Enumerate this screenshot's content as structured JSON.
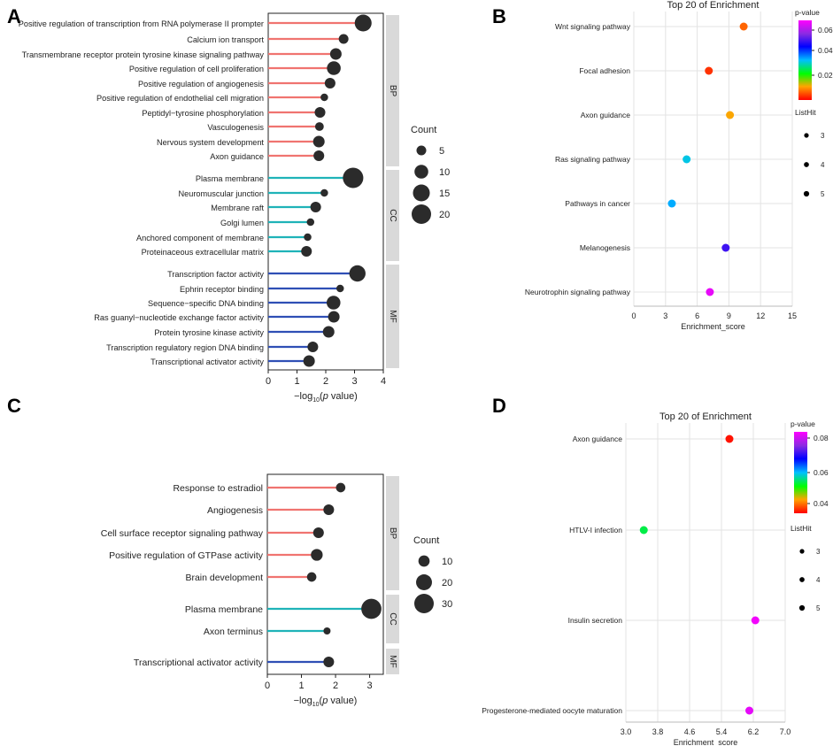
{
  "chart_data": [
    {
      "panel": "A",
      "type": "lollipop",
      "xlabel_prefix": "−log",
      "xlabel_sub": "10",
      "xlabel_open": "(",
      "xlabel_italic": "p",
      "xlabel_suffix": " value)",
      "xlim": [
        0,
        4
      ],
      "xticks": [
        "0",
        "1",
        "2",
        "3",
        "4"
      ],
      "size_legend": {
        "title": "Count",
        "labels": [
          "5",
          "10",
          "15",
          "20"
        ],
        "values": [
          5,
          10,
          15,
          20
        ]
      },
      "groups": [
        {
          "label": "BP",
          "color": "#f07470",
          "terms": [
            {
              "label": "Positive regulation of transcription from RNA polymerase II prompter",
              "value": 3.3,
              "count": 15
            },
            {
              "label": "Calcium ion transport",
              "value": 2.62,
              "count": 5
            },
            {
              "label": "Transmembrane receptor protein tyrosine kinase signaling pathway",
              "value": 2.35,
              "count": 7
            },
            {
              "label": "Positive regulation of cell proliferation",
              "value": 2.28,
              "count": 10
            },
            {
              "label": "Positive regulation of angiogenesis",
              "value": 2.15,
              "count": 6
            },
            {
              "label": "Positive regulation of endothelial cell migration",
              "value": 1.95,
              "count": 3
            },
            {
              "label": "Peptidyl−tyrosine phosphorylation",
              "value": 1.8,
              "count": 6
            },
            {
              "label": "Vasculogenesis",
              "value": 1.78,
              "count": 4
            },
            {
              "label": "Nervous system development",
              "value": 1.76,
              "count": 7
            },
            {
              "label": "Axon guidance",
              "value": 1.76,
              "count": 6
            }
          ]
        },
        {
          "label": "CC",
          "color": "#1fb3b8",
          "terms": [
            {
              "label": "Plasma membrane",
              "value": 2.95,
              "count": 22
            },
            {
              "label": "Neuromuscular junction",
              "value": 1.95,
              "count": 3
            },
            {
              "label": "Membrane raft",
              "value": 1.65,
              "count": 6
            },
            {
              "label": "Golgi lumen",
              "value": 1.47,
              "count": 3
            },
            {
              "label": "Anchored component of membrane",
              "value": 1.37,
              "count": 3
            },
            {
              "label": "Proteinaceous extracellular matrix",
              "value": 1.33,
              "count": 6
            }
          ]
        },
        {
          "label": "MF",
          "color": "#2f4fb5",
          "terms": [
            {
              "label": "Transcription factor activity",
              "value": 3.1,
              "count": 14
            },
            {
              "label": "Ephrin receptor binding",
              "value": 2.5,
              "count": 3
            },
            {
              "label": "Sequence−specific DNA binding",
              "value": 2.27,
              "count": 10
            },
            {
              "label": "Ras guanyl−nucleotide exchange factor activity",
              "value": 2.28,
              "count": 7
            },
            {
              "label": "Protein tyrosine kinase activity",
              "value": 2.1,
              "count": 7
            },
            {
              "label": "Transcription regulatory region DNA binding",
              "value": 1.55,
              "count": 6
            },
            {
              "label": "Transcriptional activator activity",
              "value": 1.42,
              "count": 7
            }
          ]
        }
      ]
    },
    {
      "panel": "B",
      "type": "scatter",
      "title": "Top 20 of  Enrichment",
      "xlabel": "Enrichment_score",
      "xlim": [
        0,
        15
      ],
      "xticks": [
        "0",
        "3",
        "6",
        "9",
        "12",
        "15"
      ],
      "colorbar": {
        "title": "p-value",
        "ticks": [
          "0.06",
          "0.04",
          "0.02"
        ],
        "range": [
          0.002,
          0.06
        ]
      },
      "size_legend": {
        "title": "ListHit",
        "labels": [
          "3",
          "4",
          "5"
        ]
      },
      "points": [
        {
          "label": "Wnt signaling pathway",
          "x": 10.4,
          "p": 0.008
        },
        {
          "label": "Focal adhesion",
          "x": 7.1,
          "p": 0.005
        },
        {
          "label": "Axon guidance",
          "x": 9.1,
          "p": 0.012
        },
        {
          "label": "Ras signaling pathway",
          "x": 5.0,
          "p": 0.03
        },
        {
          "label": "Pathways in cancer",
          "x": 3.6,
          "p": 0.032
        },
        {
          "label": "Melanogenesis",
          "x": 8.7,
          "p": 0.045
        },
        {
          "label": "Neurotrophin signaling pathway",
          "x": 7.2,
          "p": 0.058
        }
      ]
    },
    {
      "panel": "C",
      "type": "lollipop",
      "xlabel_prefix": "−log",
      "xlabel_sub": "10",
      "xlabel_open": "(",
      "xlabel_italic": "p",
      "xlabel_suffix": " value)",
      "xlim": [
        0,
        3.4
      ],
      "xticks": [
        "0",
        "1",
        "2",
        "3"
      ],
      "size_legend": {
        "title": "Count",
        "labels": [
          "10",
          "20",
          "30"
        ],
        "values": [
          10,
          20,
          30
        ]
      },
      "groups": [
        {
          "label": "BP",
          "color": "#f07470",
          "terms": [
            {
              "label": "Response to estradiol",
              "value": 2.15,
              "count": 7
            },
            {
              "label": "Angiogenesis",
              "value": 1.8,
              "count": 9
            },
            {
              "label": "Cell surface receptor signaling pathway",
              "value": 1.5,
              "count": 9
            },
            {
              "label": "Positive regulation of GTPase activity",
              "value": 1.45,
              "count": 11
            },
            {
              "label": "Brain development",
              "value": 1.3,
              "count": 7
            }
          ]
        },
        {
          "label": "CC",
          "color": "#1fb3b8",
          "terms": [
            {
              "label": "Plasma membrane",
              "value": 3.05,
              "count": 32
            },
            {
              "label": "Axon terminus",
              "value": 1.75,
              "count": 4
            }
          ]
        },
        {
          "label": "MF",
          "color": "#2f4fb5",
          "terms": [
            {
              "label": "Transcriptional activator activity",
              "value": 1.8,
              "count": 9
            }
          ]
        }
      ]
    },
    {
      "panel": "D",
      "type": "scatter",
      "title": "Top 20 of  Enrichment",
      "xlabel": "Enrichment_score",
      "xlim": [
        3.0,
        7.0
      ],
      "xticks": [
        "3.0",
        "3.8",
        "4.6",
        "5.4",
        "6.2",
        "7.0"
      ],
      "colorbar": {
        "title": "p-value",
        "ticks": [
          "0.08",
          "0.06",
          "0.04"
        ],
        "range": [
          0.032,
          0.085
        ]
      },
      "size_legend": {
        "title": "ListHit",
        "labels": [
          "3",
          "4",
          "5"
        ]
      },
      "points": [
        {
          "label": "Axon guidance",
          "x": 5.6,
          "p": 0.033
        },
        {
          "label": "HTLV-I infection",
          "x": 3.45,
          "p": 0.052
        },
        {
          "label": "Insulin secretion",
          "x": 6.25,
          "p": 0.084
        },
        {
          "label": "Progesterone-mediated oocyte maturation",
          "x": 6.1,
          "p": 0.083
        }
      ]
    }
  ]
}
